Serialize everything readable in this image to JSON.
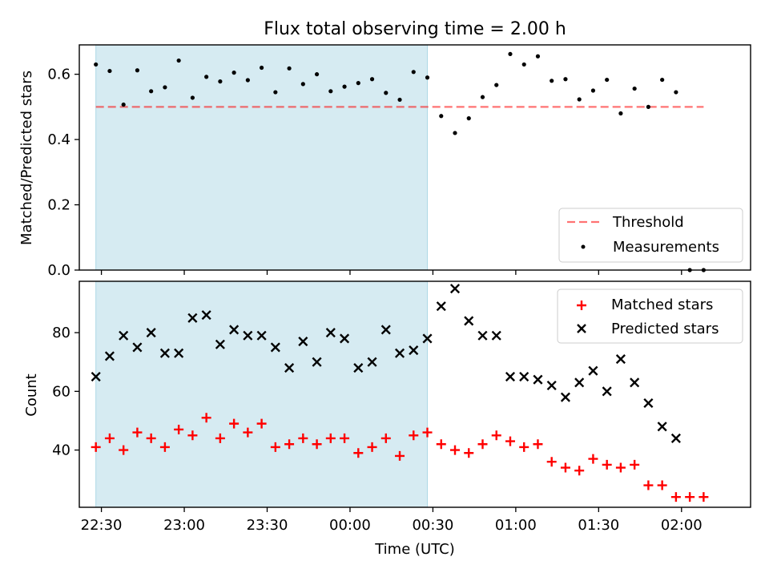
{
  "title": "Flux total observing time = 2.00 h",
  "colors": {
    "shade": "#add8e6",
    "threshold": "#ff0000",
    "matched": "#ff0000",
    "predicted": "#000000",
    "measurement": "#000000"
  },
  "chart_data": [
    {
      "type": "scatter",
      "panel": "top",
      "ylabel": "Matched/Predicted stars",
      "ylim": [
        0,
        0.69
      ],
      "yticks": [
        0.0,
        0.2,
        0.4,
        0.6
      ],
      "ytick_labels": [
        "0.0",
        "0.2",
        "0.4",
        "0.6"
      ],
      "xlim": [
        -8,
        235
      ],
      "x_unit": "minutes after 22:30 UTC",
      "shaded_interval": [
        -2,
        118
      ],
      "legend": {
        "position": "lower-right",
        "entries": [
          "Threshold",
          "Measurements"
        ]
      },
      "threshold": {
        "name": "Threshold",
        "y": 0.5,
        "x_range": [
          -2,
          218
        ],
        "style": "dashed"
      },
      "series": [
        {
          "name": "Measurements",
          "marker": "dot",
          "points": [
            [
              -2,
              0.63
            ],
            [
              3,
              0.61
            ],
            [
              8,
              0.507
            ],
            [
              13,
              0.612
            ],
            [
              18,
              0.548
            ],
            [
              23,
              0.56
            ],
            [
              28,
              0.642
            ],
            [
              33,
              0.528
            ],
            [
              38,
              0.592
            ],
            [
              43,
              0.578
            ],
            [
              48,
              0.605
            ],
            [
              53,
              0.582
            ],
            [
              58,
              0.62
            ],
            [
              63,
              0.545
            ],
            [
              68,
              0.618
            ],
            [
              73,
              0.57
            ],
            [
              78,
              0.6
            ],
            [
              83,
              0.548
            ],
            [
              88,
              0.562
            ],
            [
              93,
              0.573
            ],
            [
              98,
              0.585
            ],
            [
              103,
              0.543
            ],
            [
              108,
              0.522
            ],
            [
              113,
              0.607
            ],
            [
              118,
              0.59
            ],
            [
              123,
              0.472
            ],
            [
              128,
              0.42
            ],
            [
              133,
              0.465
            ],
            [
              138,
              0.53
            ],
            [
              143,
              0.567
            ],
            [
              148,
              0.662
            ],
            [
              153,
              0.63
            ],
            [
              158,
              0.655
            ],
            [
              163,
              0.58
            ],
            [
              168,
              0.585
            ],
            [
              173,
              0.523
            ],
            [
              178,
              0.55
            ],
            [
              183,
              0.583
            ],
            [
              188,
              0.48
            ],
            [
              193,
              0.556
            ],
            [
              198,
              0.5
            ],
            [
              203,
              0.583
            ],
            [
              208,
              0.545
            ],
            [
              213,
              0.0
            ],
            [
              218,
              0.0
            ]
          ]
        }
      ]
    },
    {
      "type": "scatter",
      "panel": "bottom",
      "ylabel": "Count",
      "xlabel": "Time (UTC)",
      "ylim": [
        20.5,
        97.5
      ],
      "yticks": [
        40,
        60,
        80
      ],
      "ytick_labels": [
        "40",
        "60",
        "80"
      ],
      "xlim": [
        -8,
        235
      ],
      "x_unit": "minutes after 22:30 UTC",
      "xticks": [
        0,
        30,
        60,
        90,
        120,
        150,
        180,
        210
      ],
      "xtick_labels": [
        "22:30",
        "23:00",
        "23:30",
        "00:00",
        "00:30",
        "01:00",
        "01:30",
        "02:00"
      ],
      "shaded_interval": [
        -2,
        118
      ],
      "legend": {
        "position": "upper-right",
        "entries": [
          "Matched stars",
          "Predicted stars"
        ]
      },
      "series": [
        {
          "name": "Matched stars",
          "marker": "plus",
          "points": [
            [
              -2,
              41
            ],
            [
              3,
              44
            ],
            [
              8,
              40
            ],
            [
              13,
              46
            ],
            [
              18,
              44
            ],
            [
              23,
              41
            ],
            [
              28,
              47
            ],
            [
              33,
              45
            ],
            [
              38,
              51
            ],
            [
              43,
              44
            ],
            [
              48,
              49
            ],
            [
              53,
              46
            ],
            [
              58,
              49
            ],
            [
              63,
              41
            ],
            [
              68,
              42
            ],
            [
              73,
              44
            ],
            [
              78,
              42
            ],
            [
              83,
              44
            ],
            [
              88,
              44
            ],
            [
              93,
              39
            ],
            [
              98,
              41
            ],
            [
              103,
              44
            ],
            [
              108,
              38
            ],
            [
              113,
              45
            ],
            [
              118,
              46
            ],
            [
              123,
              42
            ],
            [
              128,
              40
            ],
            [
              133,
              39
            ],
            [
              138,
              42
            ],
            [
              143,
              45
            ],
            [
              148,
              43
            ],
            [
              153,
              41
            ],
            [
              158,
              42
            ],
            [
              163,
              36
            ],
            [
              168,
              34
            ],
            [
              173,
              33
            ],
            [
              178,
              37
            ],
            [
              183,
              35
            ],
            [
              188,
              34
            ],
            [
              193,
              35
            ],
            [
              198,
              28
            ],
            [
              203,
              28
            ],
            [
              208,
              24
            ],
            [
              213,
              24
            ],
            [
              218,
              24
            ]
          ]
        },
        {
          "name": "Predicted stars",
          "marker": "x",
          "points": [
            [
              -2,
              65
            ],
            [
              3,
              72
            ],
            [
              8,
              79
            ],
            [
              13,
              75
            ],
            [
              18,
              80
            ],
            [
              23,
              73
            ],
            [
              28,
              73
            ],
            [
              33,
              85
            ],
            [
              38,
              86
            ],
            [
              43,
              76
            ],
            [
              48,
              81
            ],
            [
              53,
              79
            ],
            [
              58,
              79
            ],
            [
              63,
              75
            ],
            [
              68,
              68
            ],
            [
              73,
              77
            ],
            [
              78,
              70
            ],
            [
              83,
              80
            ],
            [
              88,
              78
            ],
            [
              93,
              68
            ],
            [
              98,
              70
            ],
            [
              103,
              81
            ],
            [
              108,
              73
            ],
            [
              113,
              74
            ],
            [
              118,
              78
            ],
            [
              123,
              89
            ],
            [
              128,
              95
            ],
            [
              133,
              84
            ],
            [
              138,
              79
            ],
            [
              143,
              79
            ],
            [
              148,
              65
            ],
            [
              153,
              65
            ],
            [
              158,
              64
            ],
            [
              163,
              62
            ],
            [
              168,
              58
            ],
            [
              173,
              63
            ],
            [
              178,
              67
            ],
            [
              183,
              60
            ],
            [
              188,
              71
            ],
            [
              193,
              63
            ],
            [
              198,
              56
            ],
            [
              203,
              48
            ],
            [
              208,
              44
            ]
          ]
        }
      ]
    }
  ]
}
